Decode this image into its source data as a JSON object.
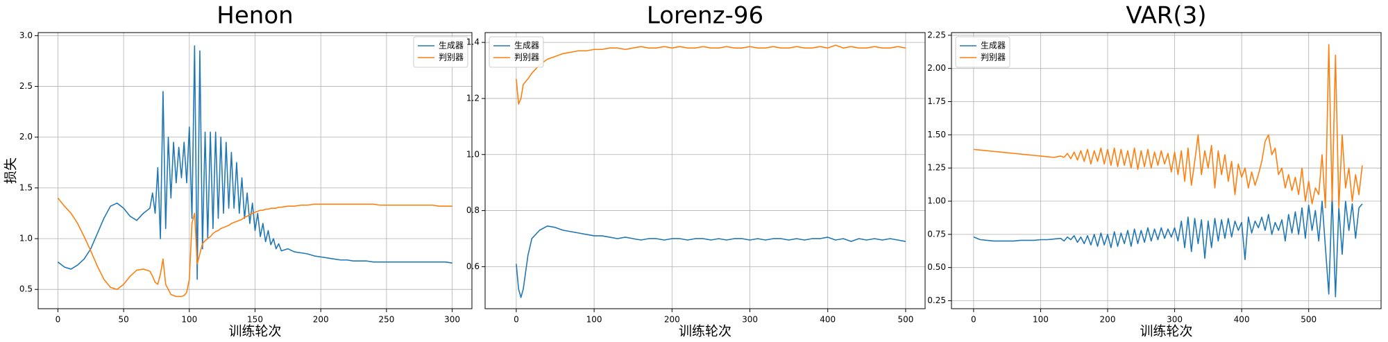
{
  "chart_data": [
    {
      "type": "line",
      "title": "Henon",
      "xlabel": "训练轮次",
      "ylabel": "损失",
      "grid": true,
      "legend": "upper right",
      "x": [
        0,
        5,
        10,
        15,
        20,
        25,
        30,
        35,
        40,
        45,
        50,
        55,
        60,
        65,
        70,
        72,
        74,
        76,
        78,
        80,
        82,
        84,
        86,
        88,
        90,
        92,
        94,
        96,
        98,
        100,
        102,
        104,
        106,
        108,
        110,
        112,
        114,
        116,
        118,
        120,
        122,
        124,
        126,
        128,
        130,
        132,
        134,
        136,
        138,
        140,
        142,
        144,
        146,
        148,
        150,
        152,
        154,
        156,
        158,
        160,
        162,
        164,
        166,
        168,
        170,
        175,
        180,
        185,
        190,
        195,
        200,
        205,
        210,
        215,
        220,
        225,
        230,
        235,
        240,
        245,
        250,
        255,
        260,
        265,
        270,
        275,
        280,
        285,
        290,
        295,
        300
      ],
      "series": [
        {
          "name": "生成器",
          "color": "#1f77b4",
          "values": [
            0.77,
            0.72,
            0.7,
            0.74,
            0.8,
            0.9,
            1.05,
            1.2,
            1.32,
            1.35,
            1.3,
            1.22,
            1.18,
            1.25,
            1.3,
            1.45,
            1.25,
            1.7,
            1.0,
            2.45,
            1.1,
            2.0,
            1.4,
            1.95,
            1.55,
            1.9,
            1.6,
            1.95,
            1.55,
            2.1,
            1.2,
            2.9,
            0.6,
            2.85,
            0.9,
            2.05,
            1.0,
            2.05,
            1.1,
            2.05,
            1.2,
            2.0,
            1.25,
            1.95,
            1.3,
            1.85,
            1.3,
            1.75,
            1.25,
            1.6,
            1.2,
            1.45,
            1.15,
            1.35,
            1.08,
            1.25,
            1.02,
            1.15,
            0.97,
            1.08,
            0.94,
            1.0,
            0.9,
            0.95,
            0.88,
            0.9,
            0.87,
            0.86,
            0.85,
            0.83,
            0.82,
            0.81,
            0.8,
            0.79,
            0.79,
            0.78,
            0.78,
            0.78,
            0.77,
            0.77,
            0.77,
            0.77,
            0.77,
            0.77,
            0.77,
            0.77,
            0.77,
            0.77,
            0.77,
            0.77,
            0.76
          ]
        },
        {
          "name": "判别器",
          "color": "#ff7f0e",
          "values": [
            1.4,
            1.32,
            1.25,
            1.15,
            1.02,
            0.88,
            0.73,
            0.6,
            0.52,
            0.5,
            0.55,
            0.63,
            0.69,
            0.7,
            0.68,
            0.63,
            0.57,
            0.55,
            0.65,
            0.8,
            0.55,
            0.5,
            0.45,
            0.44,
            0.43,
            0.43,
            0.43,
            0.44,
            0.47,
            0.6,
            1.15,
            1.25,
            0.75,
            0.85,
            0.95,
            0.98,
            1.0,
            1.02,
            1.05,
            1.07,
            1.08,
            1.1,
            1.11,
            1.12,
            1.13,
            1.15,
            1.16,
            1.17,
            1.18,
            1.19,
            1.21,
            1.22,
            1.24,
            1.25,
            1.26,
            1.27,
            1.28,
            1.28,
            1.29,
            1.29,
            1.3,
            1.3,
            1.3,
            1.31,
            1.31,
            1.32,
            1.32,
            1.33,
            1.33,
            1.34,
            1.34,
            1.34,
            1.34,
            1.34,
            1.34,
            1.34,
            1.34,
            1.34,
            1.34,
            1.33,
            1.33,
            1.33,
            1.33,
            1.33,
            1.33,
            1.33,
            1.33,
            1.33,
            1.32,
            1.32,
            1.32
          ]
        }
      ],
      "xlim": [
        -15,
        315
      ],
      "xticks": [
        0,
        50,
        100,
        150,
        200,
        250,
        300
      ],
      "ylim": [
        0.31,
        3.03
      ],
      "yticks": [
        0.5,
        {
          "value": 1,
          "label": "1.0"
        },
        1.5,
        {
          "value": 2,
          "label": "2.0"
        },
        2.5,
        {
          "value": 3,
          "label": "3.0"
        }
      ]
    },
    {
      "type": "line",
      "title": "Lorenz-96",
      "xlabel": "训练轮次",
      "grid": true,
      "legend": "upper left",
      "x": [
        0,
        3,
        6,
        9,
        12,
        15,
        20,
        30,
        40,
        50,
        60,
        70,
        80,
        90,
        100,
        110,
        120,
        130,
        140,
        150,
        160,
        170,
        180,
        190,
        200,
        210,
        220,
        230,
        240,
        250,
        260,
        270,
        280,
        290,
        300,
        310,
        320,
        330,
        340,
        350,
        360,
        370,
        380,
        390,
        400,
        410,
        420,
        430,
        440,
        450,
        460,
        470,
        480,
        490,
        500
      ],
      "series": [
        {
          "name": "生成器",
          "color": "#1f77b4",
          "values": [
            0.61,
            0.52,
            0.49,
            0.52,
            0.58,
            0.64,
            0.7,
            0.73,
            0.745,
            0.74,
            0.73,
            0.725,
            0.72,
            0.715,
            0.71,
            0.71,
            0.705,
            0.7,
            0.705,
            0.7,
            0.695,
            0.7,
            0.7,
            0.695,
            0.7,
            0.7,
            0.695,
            0.7,
            0.7,
            0.695,
            0.7,
            0.695,
            0.7,
            0.7,
            0.695,
            0.7,
            0.695,
            0.7,
            0.7,
            0.695,
            0.7,
            0.695,
            0.7,
            0.7,
            0.705,
            0.695,
            0.7,
            0.69,
            0.7,
            0.695,
            0.7,
            0.695,
            0.7,
            0.695,
            0.69
          ]
        },
        {
          "name": "判别器",
          "color": "#ff7f0e",
          "values": [
            1.27,
            1.18,
            1.2,
            1.25,
            1.26,
            1.27,
            1.29,
            1.32,
            1.34,
            1.35,
            1.36,
            1.365,
            1.37,
            1.37,
            1.375,
            1.375,
            1.38,
            1.38,
            1.375,
            1.38,
            1.385,
            1.38,
            1.38,
            1.385,
            1.38,
            1.385,
            1.38,
            1.38,
            1.385,
            1.38,
            1.38,
            1.385,
            1.38,
            1.38,
            1.385,
            1.38,
            1.38,
            1.385,
            1.38,
            1.38,
            1.385,
            1.38,
            1.38,
            1.385,
            1.38,
            1.39,
            1.38,
            1.385,
            1.38,
            1.38,
            1.385,
            1.38,
            1.38,
            1.385,
            1.38
          ]
        }
      ],
      "xlim": [
        -40,
        525
      ],
      "xticks": [
        0,
        100,
        200,
        300,
        400,
        500
      ],
      "ylim": [
        0.45,
        1.435
      ],
      "yticks": [
        0.6,
        0.8,
        {
          "value": 1,
          "label": "1.0"
        },
        1.2,
        1.4
      ]
    },
    {
      "type": "line",
      "title": "VAR(3)",
      "xlabel": "训练轮次",
      "grid": true,
      "legend": "upper left",
      "x": [
        0,
        10,
        20,
        30,
        40,
        50,
        60,
        70,
        80,
        90,
        100,
        110,
        120,
        130,
        135,
        140,
        145,
        150,
        155,
        160,
        165,
        170,
        175,
        180,
        185,
        190,
        195,
        200,
        205,
        210,
        215,
        220,
        225,
        230,
        235,
        240,
        245,
        250,
        255,
        260,
        265,
        270,
        275,
        280,
        285,
        290,
        295,
        300,
        305,
        310,
        315,
        320,
        325,
        330,
        335,
        340,
        345,
        350,
        355,
        360,
        365,
        370,
        375,
        380,
        385,
        390,
        395,
        400,
        405,
        410,
        415,
        420,
        425,
        430,
        435,
        440,
        445,
        450,
        455,
        460,
        465,
        470,
        475,
        480,
        485,
        490,
        495,
        500,
        505,
        510,
        515,
        520,
        525,
        530,
        535,
        540,
        545,
        550,
        555,
        560,
        565,
        570,
        575,
        580
      ],
      "series": [
        {
          "name": "生成器",
          "color": "#1f77b4",
          "values": [
            0.73,
            0.71,
            0.705,
            0.7,
            0.7,
            0.7,
            0.7,
            0.705,
            0.705,
            0.705,
            0.71,
            0.71,
            0.715,
            0.72,
            0.7,
            0.73,
            0.71,
            0.74,
            0.69,
            0.73,
            0.68,
            0.74,
            0.67,
            0.75,
            0.66,
            0.76,
            0.67,
            0.75,
            0.65,
            0.77,
            0.66,
            0.76,
            0.68,
            0.78,
            0.66,
            0.79,
            0.68,
            0.78,
            0.69,
            0.8,
            0.7,
            0.79,
            0.71,
            0.8,
            0.72,
            0.79,
            0.73,
            0.8,
            0.7,
            0.85,
            0.65,
            0.88,
            0.62,
            0.87,
            0.68,
            0.86,
            0.57,
            0.85,
            0.65,
            0.87,
            0.7,
            0.86,
            0.72,
            0.87,
            0.73,
            0.85,
            0.78,
            0.84,
            0.56,
            0.88,
            0.76,
            0.85,
            0.8,
            0.88,
            0.78,
            0.9,
            0.75,
            0.84,
            0.78,
            0.86,
            0.7,
            0.9,
            0.76,
            0.92,
            0.75,
            0.95,
            0.72,
            0.97,
            0.78,
            0.93,
            0.7,
            1.0,
            0.65,
            0.3,
            1.05,
            0.28,
            0.95,
            0.6,
            1.0,
            0.78,
            0.98,
            0.72,
            0.95,
            0.98
          ]
        },
        {
          "name": "判别器",
          "color": "#ff7f0e",
          "values": [
            1.39,
            1.385,
            1.38,
            1.375,
            1.37,
            1.365,
            1.36,
            1.355,
            1.35,
            1.345,
            1.34,
            1.335,
            1.33,
            1.34,
            1.33,
            1.36,
            1.32,
            1.37,
            1.31,
            1.38,
            1.3,
            1.39,
            1.28,
            1.38,
            1.3,
            1.4,
            1.28,
            1.39,
            1.27,
            1.4,
            1.26,
            1.39,
            1.27,
            1.38,
            1.25,
            1.4,
            1.24,
            1.38,
            1.26,
            1.39,
            1.25,
            1.37,
            1.27,
            1.38,
            1.28,
            1.36,
            1.22,
            1.37,
            1.2,
            1.38,
            1.15,
            1.4,
            1.12,
            1.3,
            1.5,
            1.2,
            1.38,
            1.25,
            1.42,
            1.1,
            1.38,
            1.2,
            1.35,
            1.15,
            1.3,
            1.05,
            1.28,
            1.18,
            1.25,
            1.1,
            1.22,
            1.12,
            1.2,
            1.3,
            1.45,
            1.5,
            1.35,
            1.4,
            1.2,
            1.25,
            1.1,
            1.2,
            1.08,
            1.18,
            1.05,
            1.25,
            1.0,
            1.15,
            0.98,
            1.1,
            1.05,
            1.35,
            0.95,
            2.18,
            1.0,
            2.1,
            0.95,
            1.5,
            1.1,
            1.25,
            1.0,
            1.2,
            1.05,
            1.27
          ]
        }
      ],
      "xlim": [
        -33,
        608
      ],
      "xticks": [
        0,
        100,
        200,
        300,
        400,
        500
      ],
      "ylim": [
        0.19,
        2.27
      ],
      "yticks": [
        0.25,
        {
          "value": 0.5,
          "label": "0.50"
        },
        0.75,
        {
          "value": 1,
          "label": "1.00"
        },
        1.25,
        {
          "value": 1.5,
          "label": "1.50"
        },
        1.75,
        {
          "value": 2,
          "label": "2.00"
        },
        2.25
      ]
    }
  ]
}
